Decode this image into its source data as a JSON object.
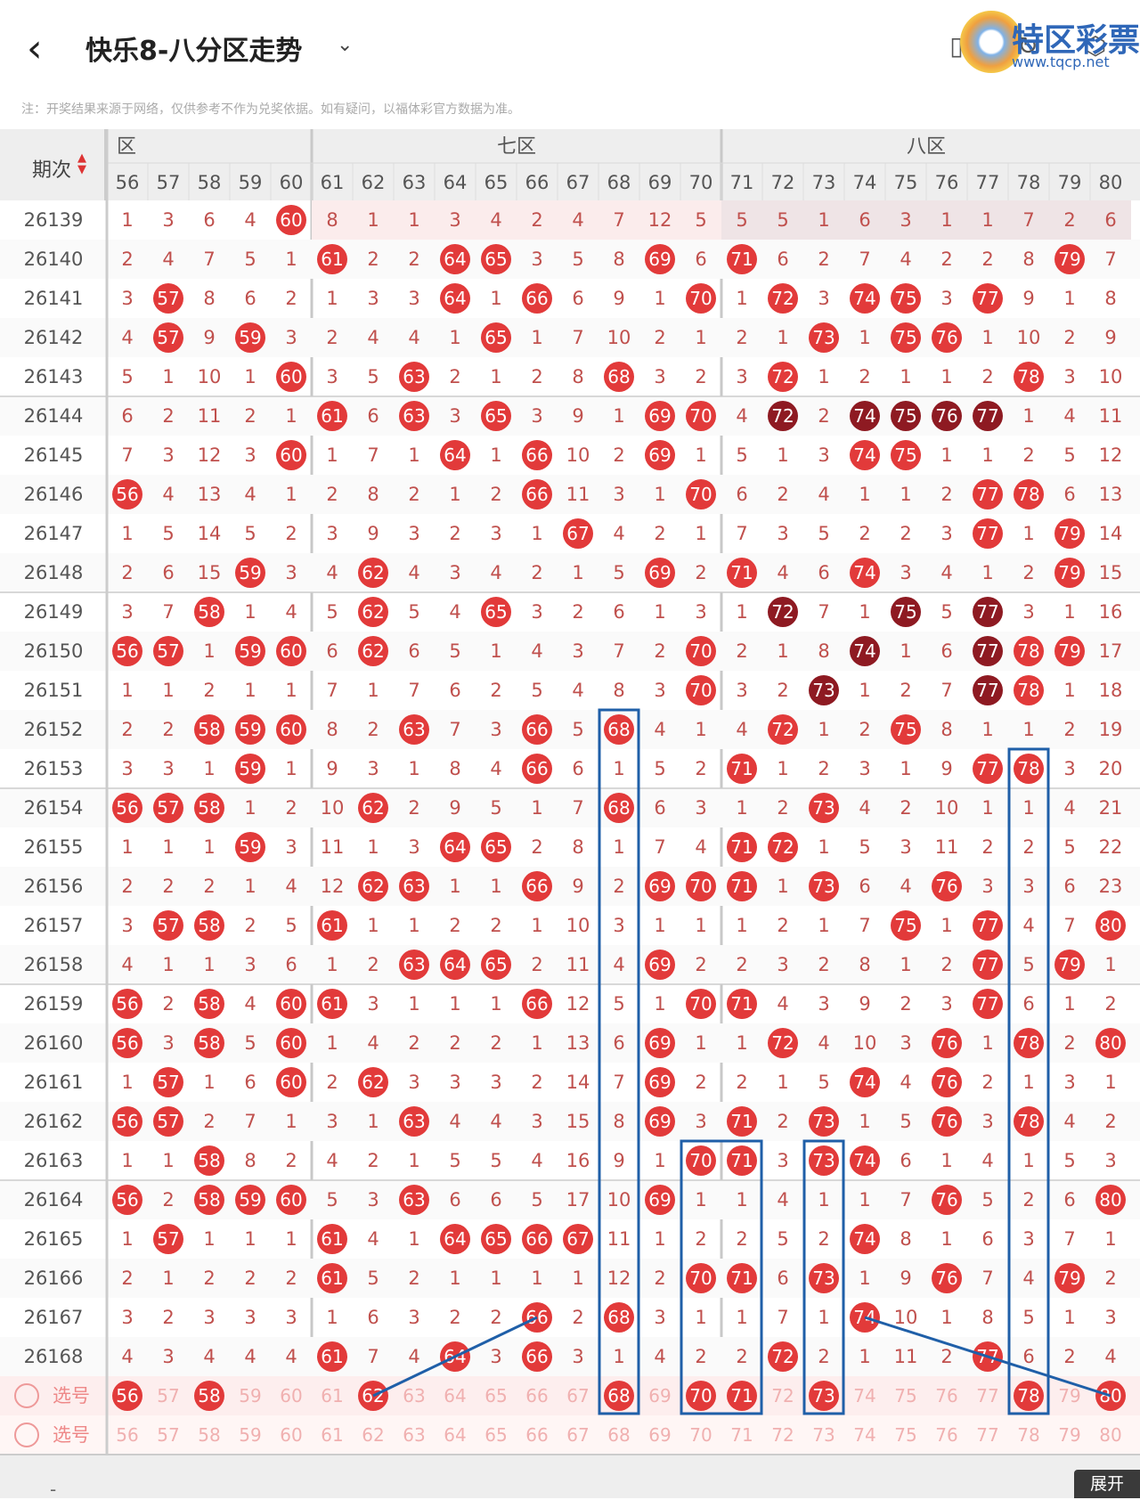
{
  "header": {
    "back_icon": "chevron-left-icon",
    "title": "快乐8-八分区走势",
    "dropdown_icon": "chevron-down-icon",
    "icons": [
      "phone-icon",
      "refresh-icon",
      "settings-icon"
    ]
  },
  "watermark": {
    "name": "特区彩票网",
    "url": "www.tqcp.net"
  },
  "notice": "注：开奖结果来源于网络，仅供参考不作为兑奖依据。如有疑问，以福体彩官方数据为准。",
  "table": {
    "period_label": "期次",
    "zones": [
      {
        "label": "六区",
        "visible_label": "六区"
      },
      {
        "label": "七区"
      },
      {
        "label": "八区"
      }
    ],
    "columns": [
      56,
      57,
      58,
      59,
      60,
      61,
      62,
      63,
      64,
      65,
      66,
      67,
      68,
      69,
      70,
      71,
      72,
      73,
      74,
      75,
      76,
      77,
      78,
      79,
      80
    ],
    "rows": [
      {
        "period": "26139",
        "cells": [
          1,
          3,
          6,
          4,
          "60",
          8,
          1,
          1,
          3,
          4,
          2,
          4,
          7,
          12,
          5,
          5,
          5,
          1,
          6,
          3,
          1,
          1,
          7,
          2,
          6
        ]
      },
      {
        "period": "26140",
        "cells": [
          2,
          4,
          7,
          5,
          1,
          "61",
          2,
          2,
          "64",
          "65",
          3,
          5,
          8,
          "69",
          6,
          "71",
          6,
          2,
          7,
          4,
          2,
          2,
          8,
          "79",
          7
        ]
      },
      {
        "period": "26141",
        "cells": [
          3,
          "57",
          8,
          6,
          2,
          1,
          3,
          3,
          "64",
          1,
          "66",
          6,
          9,
          1,
          "70",
          1,
          "72",
          3,
          "74",
          "75",
          3,
          "77",
          9,
          1,
          8
        ]
      },
      {
        "period": "26142",
        "cells": [
          4,
          "57",
          9,
          "59",
          3,
          2,
          4,
          4,
          1,
          "65",
          1,
          7,
          10,
          2,
          1,
          2,
          1,
          "73",
          1,
          "75",
          "76",
          1,
          10,
          2,
          9
        ]
      },
      {
        "period": "26143",
        "cells": [
          5,
          1,
          10,
          1,
          "60",
          3,
          5,
          "63",
          2,
          1,
          2,
          8,
          "68",
          3,
          2,
          3,
          "72",
          1,
          2,
          1,
          1,
          2,
          "78",
          3,
          10
        ]
      },
      {
        "period": "26144",
        "cells": [
          6,
          2,
          11,
          2,
          1,
          "61",
          6,
          "63",
          3,
          "65",
          3,
          9,
          1,
          "69",
          "70",
          4,
          "72",
          2,
          "74",
          "75",
          "76",
          "77",
          1,
          4,
          11
        ]
      },
      {
        "period": "26145",
        "cells": [
          7,
          3,
          12,
          3,
          "60",
          1,
          7,
          1,
          "64",
          1,
          "66",
          10,
          2,
          "69",
          1,
          5,
          1,
          3,
          "74",
          "75",
          1,
          1,
          2,
          5,
          12
        ]
      },
      {
        "period": "26146",
        "cells": [
          "56",
          4,
          13,
          4,
          1,
          2,
          8,
          2,
          1,
          2,
          "66",
          11,
          3,
          1,
          "70",
          6,
          2,
          4,
          1,
          1,
          2,
          "77",
          "78",
          6,
          13
        ]
      },
      {
        "period": "26147",
        "cells": [
          1,
          5,
          14,
          5,
          2,
          3,
          9,
          3,
          2,
          3,
          1,
          "67",
          4,
          2,
          1,
          7,
          3,
          5,
          2,
          2,
          3,
          "77",
          1,
          "79",
          14
        ]
      },
      {
        "period": "26148",
        "cells": [
          2,
          6,
          15,
          "59",
          3,
          4,
          "62",
          4,
          3,
          4,
          2,
          1,
          5,
          "69",
          2,
          "71",
          4,
          6,
          "74",
          3,
          4,
          1,
          2,
          "79",
          15
        ]
      },
      {
        "period": "26149",
        "cells": [
          3,
          7,
          "58",
          1,
          4,
          5,
          "62",
          5,
          4,
          "65",
          3,
          2,
          6,
          1,
          3,
          1,
          "72",
          7,
          1,
          "75",
          5,
          "77",
          3,
          1,
          16
        ]
      },
      {
        "period": "26150",
        "cells": [
          "56",
          "57",
          1,
          "59",
          "60",
          6,
          "62",
          6,
          5,
          1,
          4,
          3,
          7,
          2,
          "70",
          2,
          1,
          8,
          "74",
          1,
          6,
          "77",
          "78",
          "79",
          17
        ]
      },
      {
        "period": "26151",
        "cells": [
          1,
          1,
          2,
          1,
          1,
          7,
          1,
          7,
          6,
          2,
          5,
          4,
          8,
          3,
          "70",
          3,
          2,
          "73",
          1,
          2,
          7,
          "77",
          "78",
          1,
          18
        ]
      },
      {
        "period": "26152",
        "cells": [
          2,
          2,
          "58",
          "59",
          "60",
          8,
          2,
          "63",
          7,
          3,
          "66",
          5,
          "68",
          4,
          1,
          4,
          "72",
          1,
          2,
          "75",
          8,
          1,
          1,
          2,
          19
        ]
      },
      {
        "period": "26153",
        "cells": [
          3,
          3,
          1,
          "59",
          1,
          9,
          3,
          1,
          8,
          4,
          "66",
          6,
          1,
          5,
          2,
          "71",
          1,
          2,
          3,
          1,
          9,
          "77",
          "78",
          3,
          20
        ]
      },
      {
        "period": "26154",
        "cells": [
          "56",
          "57",
          "58",
          1,
          2,
          10,
          "62",
          2,
          9,
          5,
          1,
          7,
          "68",
          6,
          3,
          1,
          2,
          "73",
          4,
          2,
          10,
          1,
          1,
          4,
          21
        ]
      },
      {
        "period": "26155",
        "cells": [
          1,
          1,
          1,
          "59",
          3,
          11,
          1,
          3,
          "64",
          "65",
          2,
          8,
          1,
          7,
          4,
          "71",
          "72",
          1,
          5,
          3,
          11,
          2,
          2,
          5,
          22
        ]
      },
      {
        "period": "26156",
        "cells": [
          2,
          2,
          2,
          1,
          4,
          12,
          "62",
          "63",
          1,
          1,
          "66",
          9,
          2,
          "69",
          "70",
          "71",
          1,
          "73",
          6,
          4,
          "76",
          3,
          3,
          6,
          23
        ]
      },
      {
        "period": "26157",
        "cells": [
          3,
          "57",
          "58",
          2,
          5,
          "61",
          1,
          1,
          2,
          2,
          1,
          10,
          3,
          1,
          1,
          1,
          2,
          1,
          7,
          "75",
          1,
          "77",
          4,
          7,
          "80"
        ]
      },
      {
        "period": "26158",
        "cells": [
          4,
          1,
          1,
          3,
          6,
          1,
          2,
          "63",
          "64",
          "65",
          2,
          11,
          4,
          "69",
          2,
          2,
          3,
          2,
          8,
          1,
          2,
          "77",
          5,
          "79",
          1
        ]
      },
      {
        "period": "26159",
        "cells": [
          "56",
          2,
          "58",
          4,
          "60",
          "61",
          3,
          1,
          1,
          1,
          "66",
          12,
          5,
          1,
          "70",
          "71",
          4,
          3,
          9,
          2,
          3,
          "77",
          6,
          1,
          2
        ]
      },
      {
        "period": "26160",
        "cells": [
          "56",
          3,
          "58",
          5,
          "60",
          1,
          4,
          2,
          2,
          2,
          1,
          13,
          6,
          "69",
          1,
          1,
          "72",
          4,
          10,
          3,
          "76",
          1,
          "78",
          2,
          "80"
        ]
      },
      {
        "period": "26161",
        "cells": [
          1,
          "57",
          1,
          6,
          "60",
          2,
          "62",
          3,
          3,
          3,
          2,
          14,
          7,
          "69",
          2,
          2,
          1,
          5,
          "74",
          4,
          "76",
          2,
          1,
          3,
          1
        ]
      },
      {
        "period": "26162",
        "cells": [
          "56",
          "57",
          2,
          7,
          1,
          3,
          1,
          "63",
          4,
          4,
          3,
          15,
          8,
          "69",
          3,
          "71",
          2,
          "73",
          1,
          5,
          "76",
          3,
          "78",
          4,
          2
        ]
      },
      {
        "period": "26163",
        "cells": [
          1,
          1,
          "58",
          8,
          2,
          4,
          2,
          1,
          5,
          5,
          4,
          16,
          9,
          1,
          "70",
          "71",
          3,
          "73",
          "74",
          6,
          1,
          4,
          1,
          5,
          3
        ]
      },
      {
        "period": "26164",
        "cells": [
          "56",
          2,
          "58",
          "59",
          "60",
          5,
          3,
          "63",
          6,
          6,
          5,
          17,
          10,
          "69",
          1,
          1,
          4,
          1,
          1,
          7,
          "76",
          5,
          2,
          6,
          "80"
        ]
      },
      {
        "period": "26165",
        "cells": [
          1,
          "57",
          1,
          1,
          1,
          "61",
          4,
          1,
          "64",
          "65",
          "66",
          "67",
          11,
          1,
          2,
          2,
          5,
          2,
          "74",
          8,
          1,
          6,
          3,
          7,
          1
        ]
      },
      {
        "period": "26166",
        "cells": [
          2,
          1,
          2,
          2,
          2,
          "61",
          5,
          2,
          1,
          1,
          1,
          1,
          12,
          2,
          "70",
          "71",
          6,
          "73",
          1,
          9,
          "76",
          7,
          4,
          "79",
          2
        ]
      },
      {
        "period": "26167",
        "cells": [
          3,
          2,
          3,
          3,
          3,
          1,
          6,
          3,
          2,
          2,
          "66",
          2,
          "68",
          3,
          1,
          1,
          7,
          1,
          "74",
          10,
          1,
          8,
          5,
          1,
          3
        ]
      },
      {
        "period": "26168",
        "cells": [
          4,
          3,
          4,
          4,
          4,
          "61",
          7,
          4,
          "64",
          3,
          "66",
          3,
          1,
          4,
          2,
          2,
          "72",
          2,
          1,
          11,
          2,
          "77",
          6,
          2,
          4
        ]
      }
    ],
    "select_rows": [
      {
        "label": "选号",
        "selected": [
          56,
          58,
          62,
          68,
          70,
          71,
          73,
          78,
          80
        ]
      },
      {
        "label": "选号",
        "selected": []
      }
    ],
    "expand_label": "展开",
    "dash": "-"
  }
}
